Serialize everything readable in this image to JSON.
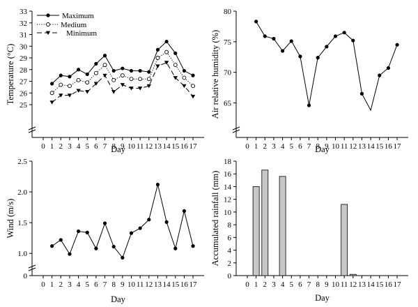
{
  "chart_data": [
    {
      "type": "line",
      "xlabel": "Day",
      "ylabel": "Temperature (°C)",
      "x": [
        0,
        1,
        2,
        3,
        4,
        5,
        6,
        7,
        8,
        9,
        10,
        11,
        12,
        13,
        14,
        15,
        16,
        17
      ],
      "x_tick_labels": [
        "0",
        "1",
        "2",
        "3",
        "4",
        "5",
        "6",
        "7",
        "8",
        "9",
        "10",
        "11",
        "12",
        "13",
        "14",
        "15",
        "16",
        "17"
      ],
      "ylim": [
        25,
        33
      ],
      "y_ticks": [
        25,
        26,
        27,
        28,
        29,
        30,
        31,
        32,
        33
      ],
      "y_tick_labels": [
        "25",
        "26",
        "27",
        "28",
        "29",
        "30",
        "31",
        "32",
        "33"
      ],
      "legend_position": "top-left",
      "series": [
        {
          "name": "Maximum",
          "marker": "filled-circle",
          "dash": "solid",
          "x": [
            1,
            2,
            3,
            4,
            5,
            6,
            7,
            8,
            9,
            10,
            11,
            12,
            13,
            14,
            15,
            16,
            17
          ],
          "values": [
            26.8,
            27.5,
            27.4,
            28.0,
            27.6,
            28.5,
            29.2,
            27.9,
            28.1,
            27.9,
            27.9,
            27.8,
            29.7,
            30.4,
            29.4,
            27.9,
            27.5
          ]
        },
        {
          "name": "Medium",
          "marker": "open-circle",
          "dash": "dotted",
          "x": [
            1,
            2,
            3,
            4,
            5,
            6,
            7,
            8,
            9,
            10,
            11,
            12,
            13,
            14,
            15,
            16,
            17
          ],
          "values": [
            26.0,
            26.7,
            26.6,
            27.1,
            26.9,
            27.7,
            28.4,
            27.1,
            27.5,
            27.2,
            27.2,
            27.2,
            29.0,
            29.5,
            28.4,
            27.3,
            26.6
          ]
        },
        {
          "name": "Minimum",
          "marker": "filled-triangle-down",
          "dash": "dashed",
          "x": [
            1,
            2,
            3,
            4,
            5,
            6,
            7,
            8,
            9,
            10,
            11,
            12,
            13,
            14,
            15,
            16,
            17
          ],
          "values": [
            25.2,
            25.8,
            25.8,
            26.2,
            26.1,
            26.8,
            27.5,
            26.1,
            26.7,
            26.4,
            26.4,
            26.6,
            28.3,
            28.6,
            27.3,
            26.6,
            25.7
          ]
        }
      ]
    },
    {
      "type": "line",
      "xlabel": "Day",
      "ylabel": "Air relative humidity (%)",
      "x": [
        0,
        1,
        2,
        3,
        4,
        5,
        6,
        7,
        8,
        9,
        10,
        11,
        12,
        13,
        14,
        15,
        16,
        17
      ],
      "x_tick_labels": [
        "0",
        "1",
        "2",
        "3",
        "4",
        "5",
        "6",
        "7",
        "8",
        "9",
        "10",
        "11",
        "12",
        "13",
        "14",
        "15",
        "16",
        "17"
      ],
      "ylim": [
        63,
        80
      ],
      "y_ticks": [
        65,
        70,
        75,
        80
      ],
      "y_tick_labels": [
        "65",
        "70",
        "75",
        "80"
      ],
      "series": [
        {
          "marker": "filled-circle",
          "dash": "solid",
          "x": [
            1,
            2,
            3,
            4,
            5,
            6,
            7,
            8,
            9,
            10,
            11,
            12,
            13,
            14,
            15,
            16,
            17
          ],
          "values": [
            78.3,
            75.9,
            75.5,
            73.5,
            75.1,
            72.6,
            64.6,
            72.4,
            74.2,
            75.9,
            76.5,
            75.2,
            66.5,
            63.8,
            69.5,
            70.7,
            74.5
          ],
          "markers_hidden_at": [
            14
          ]
        }
      ]
    },
    {
      "type": "line",
      "xlabel": "Day",
      "ylabel": "Wind (m/s)",
      "x": [
        0,
        1,
        2,
        3,
        4,
        5,
        6,
        7,
        8,
        9,
        10,
        11,
        12,
        13,
        14,
        15,
        16,
        17
      ],
      "x_tick_labels": [
        "0",
        "1",
        "2",
        "3",
        "4",
        "5",
        "6",
        "7",
        "8",
        "9",
        "10",
        "11",
        "12",
        "13",
        "14",
        "15",
        "16",
        "17"
      ],
      "ylim": [
        0.9,
        2.5
      ],
      "y_ticks": [
        1.0,
        1.5,
        2.0,
        2.5
      ],
      "y_tick_labels": [
        "1.0",
        "1.5",
        "2.0",
        "2.5"
      ],
      "y_zero_label": "0",
      "series": [
        {
          "marker": "filled-circle",
          "dash": "solid",
          "x": [
            1,
            2,
            3,
            4,
            5,
            6,
            7,
            8,
            9,
            10,
            11,
            12,
            13,
            14,
            15,
            16,
            17
          ],
          "values": [
            1.12,
            1.22,
            0.99,
            1.36,
            1.34,
            1.08,
            1.49,
            1.11,
            0.93,
            1.33,
            1.41,
            1.55,
            2.12,
            1.51,
            1.08,
            1.69,
            1.12
          ]
        }
      ]
    },
    {
      "type": "bar",
      "xlabel": "Day",
      "ylabel": "Accumulated rainfall (mm)",
      "x": [
        0,
        1,
        2,
        3,
        4,
        5,
        6,
        7,
        8,
        9,
        10,
        11,
        12,
        13,
        14,
        15,
        16,
        17
      ],
      "x_tick_labels": [
        "0",
        "1",
        "2",
        "3",
        "4",
        "5",
        "6",
        "7",
        "8",
        "9",
        "10",
        "11",
        "12",
        "13",
        "14",
        "15",
        "16",
        "17"
      ],
      "ylim": [
        0,
        18
      ],
      "y_ticks": [
        0,
        2,
        4,
        6,
        8,
        10,
        12,
        14,
        16,
        18
      ],
      "y_tick_labels": [
        "0",
        "2",
        "4",
        "6",
        "8",
        "10",
        "12",
        "14",
        "16",
        "18"
      ],
      "values": [
        0,
        14.0,
        16.6,
        0,
        15.6,
        0,
        0,
        0,
        0,
        0,
        0,
        11.2,
        0.2,
        0,
        0,
        0,
        0,
        0
      ],
      "bar_color": "#c8c8c8"
    }
  ]
}
